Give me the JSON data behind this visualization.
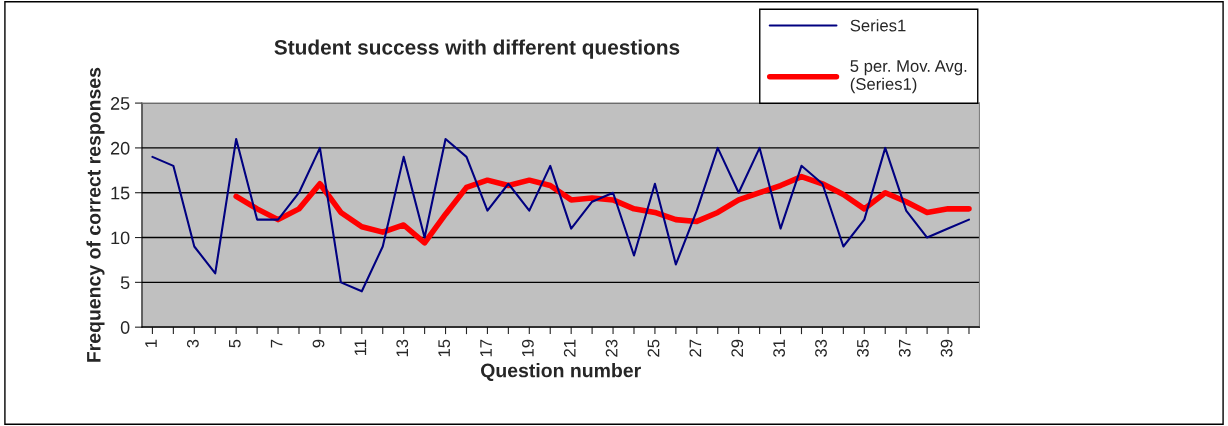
{
  "chart_data": {
    "type": "line",
    "title": "Student success with different questions",
    "xlabel": "Question number",
    "ylabel": "Frequency of correct responses",
    "categories": [
      "1",
      null,
      "3",
      null,
      "5",
      null,
      "7",
      null,
      "9",
      null,
      "11",
      null,
      "13",
      null,
      "15",
      null,
      "17",
      null,
      "19",
      null,
      "21",
      null,
      "23",
      null,
      "25",
      null,
      "27",
      null,
      "29",
      null,
      "31",
      null,
      "33",
      null,
      "35",
      null,
      "37",
      null,
      "39",
      null
    ],
    "series": [
      {
        "name": "Series1",
        "color": "#000080",
        "values": [
          19,
          18,
          9,
          6,
          21,
          12,
          12,
          15,
          20,
          5,
          4,
          9,
          19,
          10,
          21,
          19,
          13,
          16,
          13,
          18,
          11,
          14,
          15,
          8,
          16,
          7,
          13,
          20,
          15,
          20,
          11,
          18,
          16,
          9,
          12,
          20,
          13,
          10,
          11,
          12
        ]
      },
      {
        "name": "5 per. Mov. Avg.\n(Series1)",
        "color": "#ff0000",
        "values": [
          null,
          null,
          null,
          null,
          14.6,
          13.2,
          12,
          13.2,
          16,
          12.8,
          11.2,
          10.6,
          11.4,
          9.4,
          12.6,
          15.6,
          16.4,
          15.8,
          16.4,
          15.8,
          14.2,
          14.4,
          14.2,
          13.2,
          12.8,
          12,
          11.8,
          12.8,
          14.2,
          15,
          15.8,
          16.8,
          16,
          14.8,
          13.2,
          15,
          14,
          12.8,
          13.2,
          13.2
        ]
      }
    ],
    "ylim": [
      0,
      25
    ],
    "yticks": [
      0,
      5,
      10,
      15,
      20,
      25
    ],
    "grid": "y",
    "legend": "top right"
  }
}
